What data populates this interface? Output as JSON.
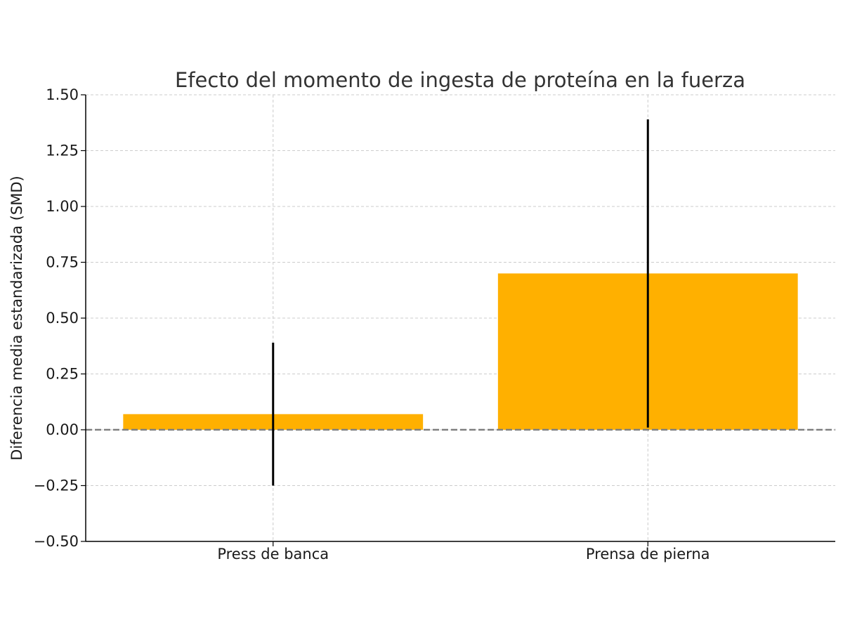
{
  "chart_data": {
    "type": "bar",
    "title": "Efecto del momento de ingesta de proteína en la fuerza",
    "xlabel": "",
    "ylabel": "Diferencia media estandarizada (SMD)",
    "categories": [
      "Press de banca",
      "Prensa de pierna"
    ],
    "values": [
      0.07,
      0.7
    ],
    "error_low": [
      -0.25,
      0.01
    ],
    "error_high": [
      0.39,
      1.39
    ],
    "ylim": [
      -0.5,
      1.5
    ],
    "yticks": [
      -0.5,
      -0.25,
      0.0,
      0.25,
      0.5,
      0.75,
      1.0,
      1.25,
      1.5
    ],
    "ytick_labels": [
      "−0.50",
      "−0.25",
      "0.00",
      "0.25",
      "0.50",
      "0.75",
      "1.00",
      "1.25",
      "1.50"
    ],
    "reference_line": 0,
    "grid": true,
    "bar_color": "#ffb000",
    "error_color": "#000000",
    "reference_line_color": "#808080",
    "grid_color": "#cccccc"
  }
}
